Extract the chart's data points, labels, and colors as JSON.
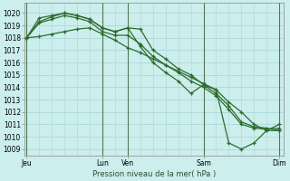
{
  "title": "Pression niveau de la mer( hPa )",
  "bg_color": "#cceeed",
  "grid_color": "#aad8d8",
  "line_color": "#2d6b2d",
  "vline_color": "#557755",
  "ylim": [
    1008.5,
    1020.8
  ],
  "yticks": [
    1009,
    1010,
    1011,
    1012,
    1013,
    1014,
    1015,
    1016,
    1017,
    1018,
    1019,
    1020
  ],
  "xtick_labels": [
    "Jeu",
    "Lun",
    "Ven",
    "Sam",
    "Dim"
  ],
  "xtick_positions": [
    0,
    36,
    48,
    84,
    120
  ],
  "vlines": [
    0,
    36,
    48,
    84,
    120
  ],
  "xlim": [
    -1,
    122
  ],
  "series": [
    {
      "x": [
        0,
        6,
        12,
        18,
        24,
        30,
        36,
        42,
        48,
        54,
        60,
        66,
        72,
        78,
        84,
        90,
        96,
        102,
        108,
        114,
        120
      ],
      "y": [
        1018.0,
        1019.6,
        1019.8,
        1020.0,
        1019.8,
        1019.5,
        1018.8,
        1018.5,
        1018.8,
        1018.7,
        1017.0,
        1016.3,
        1015.5,
        1015.0,
        1014.2,
        1013.5,
        1012.5,
        1011.2,
        1010.8,
        1010.7,
        1010.5
      ]
    },
    {
      "x": [
        0,
        6,
        12,
        18,
        24,
        30,
        36,
        42,
        48,
        54,
        60,
        66,
        72,
        78,
        84,
        90,
        96,
        102,
        108,
        114,
        120
      ],
      "y": [
        1018.0,
        1019.2,
        1019.5,
        1019.8,
        1019.6,
        1019.3,
        1018.5,
        1018.2,
        1018.2,
        1017.5,
        1016.5,
        1015.8,
        1015.2,
        1014.5,
        1014.0,
        1013.3,
        1012.2,
        1011.0,
        1010.7,
        1010.6,
        1010.7
      ]
    },
    {
      "x": [
        0,
        6,
        12,
        18,
        24,
        30,
        36,
        42,
        48,
        54,
        60,
        66,
        72,
        78,
        84,
        90,
        96,
        102,
        108,
        114,
        120
      ],
      "y": [
        1018.0,
        1018.1,
        1018.3,
        1018.5,
        1018.7,
        1018.8,
        1018.3,
        1017.8,
        1017.2,
        1016.8,
        1016.3,
        1015.8,
        1015.3,
        1014.8,
        1014.3,
        1013.8,
        1012.8,
        1012.0,
        1011.0,
        1010.5,
        1010.5
      ]
    },
    {
      "x": [
        0,
        6,
        12,
        18,
        24,
        30,
        36,
        42,
        48,
        54,
        60,
        66,
        72,
        78,
        84,
        90,
        96,
        102,
        108,
        114,
        120
      ],
      "y": [
        1018.0,
        1019.3,
        1019.7,
        1020.0,
        1019.8,
        1019.5,
        1018.8,
        1018.5,
        1018.8,
        1017.3,
        1016.0,
        1015.2,
        1014.5,
        1013.5,
        1014.2,
        1013.8,
        1009.5,
        1009.0,
        1009.5,
        1010.5,
        1011.0
      ]
    }
  ]
}
